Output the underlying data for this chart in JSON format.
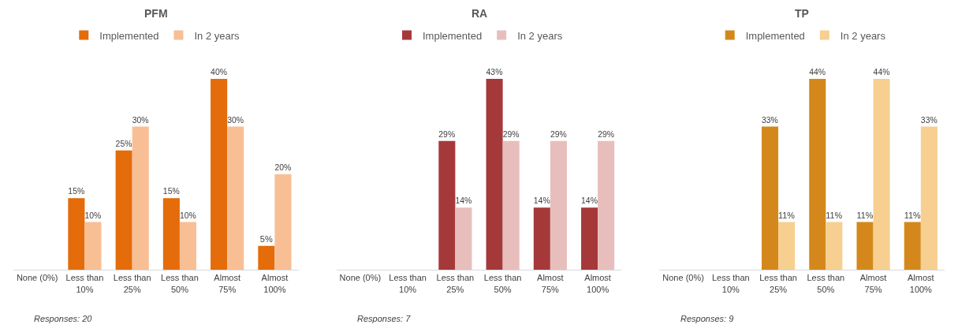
{
  "chart_data": [
    {
      "type": "bar",
      "title": "PFM",
      "categories": [
        "None (0%)",
        "Less than 10%",
        "Less than 25%",
        "Less than 50%",
        "Almost 75%",
        "Almost 100%"
      ],
      "legend": "top",
      "annotations": [
        "Responses: 20"
      ],
      "series": [
        {
          "name": "Implemented",
          "color": "#e46c0a",
          "values": [
            null,
            15,
            25,
            15,
            40,
            5
          ],
          "value_labels": [
            null,
            "15%",
            "25%",
            "15%",
            "40%",
            "5%"
          ]
        },
        {
          "name": "In 2 years",
          "color": "#f8bf95",
          "values": [
            null,
            10,
            30,
            10,
            30,
            20
          ],
          "value_labels": [
            null,
            "10%",
            "30%",
            "10%",
            "30%",
            "20%"
          ]
        }
      ]
    },
    {
      "type": "bar",
      "title": "RA",
      "categories": [
        "None (0%)",
        "Less than 10%",
        "Less than 25%",
        "Less than 50%",
        "Almost 75%",
        "Almost 100%"
      ],
      "legend": "top",
      "annotations": [
        "Responses: 7"
      ],
      "series": [
        {
          "name": "Implemented",
          "color": "#a5393a",
          "values": [
            null,
            null,
            29,
            43,
            14,
            14
          ],
          "value_labels": [
            null,
            null,
            "29%",
            "43%",
            "14%",
            "14%"
          ]
        },
        {
          "name": "In 2 years",
          "color": "#e8bebd",
          "values": [
            null,
            null,
            14,
            29,
            29,
            29
          ],
          "value_labels": [
            null,
            null,
            "14%",
            "29%",
            "29%",
            "29%"
          ]
        }
      ]
    },
    {
      "type": "bar",
      "title": "TP",
      "categories": [
        "None (0%)",
        "Less than 10%",
        "Less than 25%",
        "Less than 50%",
        "Almost 75%",
        "Almost 100%"
      ],
      "legend": "top",
      "annotations": [
        "Responses: 9"
      ],
      "series": [
        {
          "name": "Implemented",
          "color": "#d4881c",
          "values": [
            null,
            null,
            33,
            44,
            11,
            11
          ],
          "value_labels": [
            null,
            null,
            "33%",
            "44%",
            "11%",
            "11%"
          ]
        },
        {
          "name": "In 2 years",
          "color": "#f6cf91",
          "values": [
            null,
            null,
            11,
            11,
            44,
            33
          ],
          "value_labels": [
            null,
            null,
            "11%",
            "11%",
            "44%",
            "33%"
          ]
        }
      ]
    }
  ]
}
